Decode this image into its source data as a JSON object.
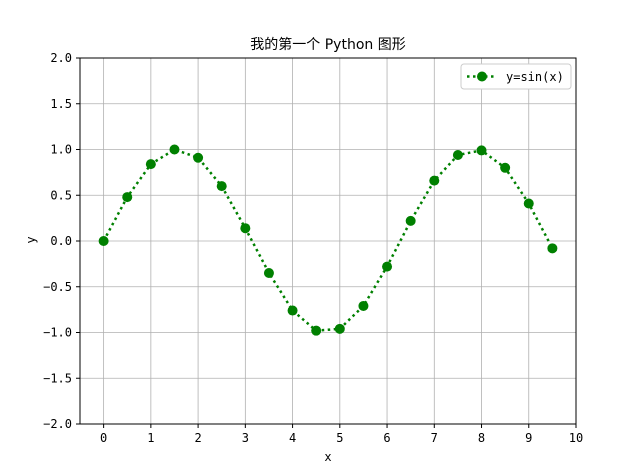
{
  "chart_data": {
    "type": "line",
    "title": "我的第一个 Python 图形",
    "xlabel": "x",
    "ylabel": "y",
    "xlim": [
      -0.5,
      10
    ],
    "ylim": [
      -2.0,
      2.0
    ],
    "xticks": [
      "0",
      "1",
      "2",
      "3",
      "4",
      "5",
      "6",
      "7",
      "8",
      "9",
      "10"
    ],
    "yticks": [
      "2.0",
      "1.5",
      "1.0",
      "0.5",
      "0.0",
      "−0.5",
      "−1.0",
      "−1.5",
      "−2.0"
    ],
    "grid": true,
    "legend_position": "top-right",
    "series": [
      {
        "name": "y=sin(x)",
        "color": "#008000",
        "line_style": "dotted",
        "marker": "circle",
        "x": [
          0,
          0.5,
          1,
          1.5,
          2,
          2.5,
          3,
          3.5,
          4,
          4.5,
          5,
          5.5,
          6,
          6.5,
          7,
          7.5,
          8,
          8.5,
          9,
          9.5
        ],
        "y": [
          0.0,
          0.48,
          0.84,
          1.0,
          0.91,
          0.6,
          0.14,
          -0.35,
          -0.76,
          -0.98,
          -0.96,
          -0.71,
          -0.28,
          0.22,
          0.66,
          0.94,
          0.99,
          0.8,
          0.41,
          -0.08
        ]
      }
    ]
  }
}
